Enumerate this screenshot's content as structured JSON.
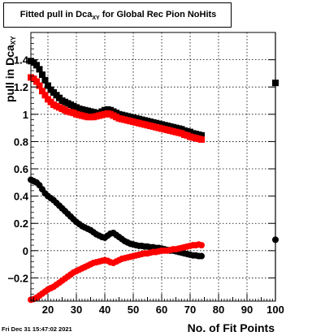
{
  "title": {
    "main": "Fitted pull in Dca",
    "sub": "XY",
    "rest": " for Global Rec Pion NoHits"
  },
  "xlabel": "No. of Fit Points",
  "ylabel": {
    "main": "pull in Dca",
    "sub": "XY"
  },
  "datestamp": "Fri Dec 31 15:47:02 2021",
  "chart_data": {
    "type": "scatter",
    "xlim": [
      14,
      100
    ],
    "ylim": [
      -0.37,
      1.6
    ],
    "grid": true,
    "x_ticks": [
      20,
      30,
      40,
      50,
      60,
      70,
      80,
      90,
      100
    ],
    "y_ticks": [
      -0.2,
      0,
      0.2,
      0.4,
      0.6,
      0.8,
      1,
      1.2,
      1.4
    ],
    "x_tick_labels": [
      "20",
      "30",
      "40",
      "50",
      "60",
      "70",
      "80",
      "90",
      "100"
    ],
    "y_tick_labels": [
      "−0.2",
      "0",
      "0.2",
      "0.4",
      "0.6",
      "0.8",
      "1",
      "1.2",
      "1.4"
    ],
    "series": [
      {
        "color": "#000000",
        "marker": "square",
        "points": [
          [
            14,
            1.39
          ],
          [
            15,
            1.38
          ],
          [
            16,
            1.36
          ],
          [
            17,
            1.33
          ],
          [
            18,
            1.29
          ],
          [
            19,
            1.25
          ],
          [
            20,
            1.21
          ],
          [
            21,
            1.18
          ],
          [
            22,
            1.16
          ],
          [
            23,
            1.14
          ],
          [
            24,
            1.12
          ],
          [
            25,
            1.1
          ],
          [
            26,
            1.09
          ],
          [
            27,
            1.08
          ],
          [
            28,
            1.07
          ],
          [
            29,
            1.06
          ],
          [
            30,
            1.05
          ],
          [
            31,
            1.04
          ],
          [
            32,
            1.035
          ],
          [
            33,
            1.03
          ],
          [
            34,
            1.025
          ],
          [
            35,
            1.02
          ],
          [
            36,
            1.015
          ],
          [
            37,
            1.01
          ],
          [
            38,
            1.01
          ],
          [
            39,
            1.02
          ],
          [
            40,
            1.03
          ],
          [
            41,
            1.035
          ],
          [
            42,
            1.03
          ],
          [
            43,
            1.02
          ],
          [
            44,
            1.01
          ],
          [
            45,
            1.0
          ],
          [
            46,
            0.995
          ],
          [
            47,
            0.99
          ],
          [
            48,
            0.985
          ],
          [
            49,
            0.98
          ],
          [
            50,
            0.975
          ],
          [
            51,
            0.97
          ],
          [
            52,
            0.965
          ],
          [
            53,
            0.96
          ],
          [
            54,
            0.955
          ],
          [
            55,
            0.95
          ],
          [
            56,
            0.945
          ],
          [
            57,
            0.94
          ],
          [
            58,
            0.935
          ],
          [
            59,
            0.93
          ],
          [
            60,
            0.925
          ],
          [
            61,
            0.92
          ],
          [
            62,
            0.915
          ],
          [
            63,
            0.91
          ],
          [
            64,
            0.905
          ],
          [
            65,
            0.9
          ],
          [
            66,
            0.895
          ],
          [
            67,
            0.89
          ],
          [
            68,
            0.88
          ],
          [
            69,
            0.875
          ],
          [
            70,
            0.87
          ],
          [
            71,
            0.86
          ],
          [
            72,
            0.855
          ],
          [
            73,
            0.85
          ],
          [
            74,
            0.845
          ],
          [
            100,
            1.23
          ]
        ]
      },
      {
        "color": "#ff0000",
        "marker": "square",
        "points": [
          [
            14,
            1.27
          ],
          [
            15,
            1.26
          ],
          [
            16,
            1.24
          ],
          [
            17,
            1.21
          ],
          [
            18,
            1.17
          ],
          [
            19,
            1.14
          ],
          [
            20,
            1.11
          ],
          [
            21,
            1.09
          ],
          [
            22,
            1.07
          ],
          [
            23,
            1.06
          ],
          [
            24,
            1.05
          ],
          [
            25,
            1.04
          ],
          [
            26,
            1.03
          ],
          [
            27,
            1.02
          ],
          [
            28,
            1.015
          ],
          [
            29,
            1.01
          ],
          [
            30,
            1.0
          ],
          [
            31,
            0.995
          ],
          [
            32,
            0.99
          ],
          [
            33,
            0.985
          ],
          [
            34,
            0.98
          ],
          [
            35,
            0.98
          ],
          [
            36,
            0.98
          ],
          [
            37,
            0.985
          ],
          [
            38,
            0.99
          ],
          [
            39,
            0.995
          ],
          [
            40,
            1.0
          ],
          [
            41,
            1.005
          ],
          [
            42,
            1.0
          ],
          [
            43,
            0.99
          ],
          [
            44,
            0.98
          ],
          [
            45,
            0.97
          ],
          [
            46,
            0.965
          ],
          [
            47,
            0.96
          ],
          [
            48,
            0.955
          ],
          [
            49,
            0.95
          ],
          [
            50,
            0.945
          ],
          [
            51,
            0.94
          ],
          [
            52,
            0.935
          ],
          [
            53,
            0.93
          ],
          [
            54,
            0.925
          ],
          [
            55,
            0.92
          ],
          [
            56,
            0.915
          ],
          [
            57,
            0.91
          ],
          [
            58,
            0.905
          ],
          [
            59,
            0.9
          ],
          [
            60,
            0.895
          ],
          [
            61,
            0.89
          ],
          [
            62,
            0.885
          ],
          [
            63,
            0.88
          ],
          [
            64,
            0.875
          ],
          [
            65,
            0.87
          ],
          [
            66,
            0.865
          ],
          [
            67,
            0.86
          ],
          [
            68,
            0.85
          ],
          [
            69,
            0.845
          ],
          [
            70,
            0.835
          ],
          [
            71,
            0.83
          ],
          [
            72,
            0.825
          ],
          [
            73,
            0.82
          ],
          [
            74,
            0.815
          ]
        ]
      },
      {
        "color": "#000000",
        "marker": "circle",
        "points": [
          [
            14,
            0.52
          ],
          [
            15,
            0.51
          ],
          [
            16,
            0.5
          ],
          [
            17,
            0.48
          ],
          [
            18,
            0.45
          ],
          [
            19,
            0.42
          ],
          [
            20,
            0.4
          ],
          [
            21,
            0.385
          ],
          [
            22,
            0.37
          ],
          [
            23,
            0.35
          ],
          [
            24,
            0.33
          ],
          [
            25,
            0.31
          ],
          [
            26,
            0.29
          ],
          [
            27,
            0.27
          ],
          [
            28,
            0.25
          ],
          [
            29,
            0.23
          ],
          [
            30,
            0.21
          ],
          [
            31,
            0.195
          ],
          [
            32,
            0.18
          ],
          [
            33,
            0.17
          ],
          [
            34,
            0.16
          ],
          [
            35,
            0.15
          ],
          [
            36,
            0.135
          ],
          [
            37,
            0.12
          ],
          [
            38,
            0.11
          ],
          [
            39,
            0.1
          ],
          [
            40,
            0.095
          ],
          [
            41,
            0.11
          ],
          [
            42,
            0.125
          ],
          [
            43,
            0.13
          ],
          [
            44,
            0.115
          ],
          [
            45,
            0.1
          ],
          [
            46,
            0.085
          ],
          [
            47,
            0.07
          ],
          [
            48,
            0.06
          ],
          [
            49,
            0.05
          ],
          [
            50,
            0.045
          ],
          [
            51,
            0.04
          ],
          [
            52,
            0.035
          ],
          [
            53,
            0.035
          ],
          [
            54,
            0.03
          ],
          [
            55,
            0.03
          ],
          [
            56,
            0.025
          ],
          [
            57,
            0.025
          ],
          [
            58,
            0.02
          ],
          [
            59,
            0.02
          ],
          [
            60,
            0.015
          ],
          [
            61,
            0.01
          ],
          [
            62,
            0.005
          ],
          [
            63,
            0.0
          ],
          [
            64,
            0.0
          ],
          [
            65,
            -0.005
          ],
          [
            66,
            -0.01
          ],
          [
            67,
            -0.015
          ],
          [
            68,
            -0.02
          ],
          [
            69,
            -0.025
          ],
          [
            70,
            -0.03
          ],
          [
            71,
            -0.035
          ],
          [
            72,
            -0.035
          ],
          [
            73,
            -0.04
          ],
          [
            74,
            -0.04
          ],
          [
            100,
            0.08
          ]
        ]
      },
      {
        "color": "#ff0000",
        "marker": "circle",
        "points": [
          [
            14,
            -0.36
          ],
          [
            15,
            -0.355
          ],
          [
            16,
            -0.345
          ],
          [
            17,
            -0.33
          ],
          [
            18,
            -0.315
          ],
          [
            19,
            -0.3
          ],
          [
            20,
            -0.285
          ],
          [
            21,
            -0.275
          ],
          [
            22,
            -0.265
          ],
          [
            23,
            -0.25
          ],
          [
            24,
            -0.235
          ],
          [
            25,
            -0.22
          ],
          [
            26,
            -0.205
          ],
          [
            27,
            -0.19
          ],
          [
            28,
            -0.175
          ],
          [
            29,
            -0.16
          ],
          [
            30,
            -0.15
          ],
          [
            31,
            -0.14
          ],
          [
            32,
            -0.13
          ],
          [
            33,
            -0.12
          ],
          [
            34,
            -0.11
          ],
          [
            35,
            -0.1
          ],
          [
            36,
            -0.09
          ],
          [
            37,
            -0.085
          ],
          [
            38,
            -0.08
          ],
          [
            39,
            -0.075
          ],
          [
            40,
            -0.07
          ],
          [
            41,
            -0.075
          ],
          [
            42,
            -0.085
          ],
          [
            43,
            -0.09
          ],
          [
            44,
            -0.08
          ],
          [
            45,
            -0.07
          ],
          [
            46,
            -0.06
          ],
          [
            47,
            -0.055
          ],
          [
            48,
            -0.05
          ],
          [
            49,
            -0.045
          ],
          [
            50,
            -0.04
          ],
          [
            51,
            -0.035
          ],
          [
            52,
            -0.03
          ],
          [
            53,
            -0.025
          ],
          [
            54,
            -0.02
          ],
          [
            55,
            -0.02
          ],
          [
            56,
            -0.015
          ],
          [
            57,
            -0.01
          ],
          [
            58,
            -0.01
          ],
          [
            59,
            -0.005
          ],
          [
            60,
            0.0
          ],
          [
            61,
            0.0
          ],
          [
            62,
            0.0
          ],
          [
            63,
            0.005
          ],
          [
            64,
            0.01
          ],
          [
            65,
            0.01
          ],
          [
            66,
            0.015
          ],
          [
            67,
            0.02
          ],
          [
            68,
            0.025
          ],
          [
            69,
            0.03
          ],
          [
            70,
            0.035
          ],
          [
            71,
            0.04
          ],
          [
            72,
            0.04
          ],
          [
            73,
            0.045
          ],
          [
            74,
            0.04
          ]
        ]
      }
    ]
  }
}
